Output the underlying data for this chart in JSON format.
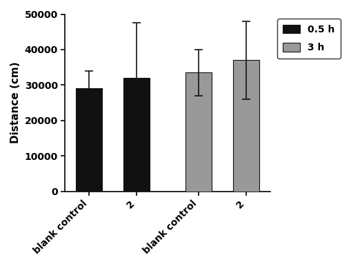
{
  "categories": [
    "blank control",
    "2",
    "blank control",
    "2"
  ],
  "values": [
    29000,
    32000,
    33500,
    37000
  ],
  "errors": [
    5000,
    15500,
    6500,
    11000
  ],
  "bar_colors": [
    "#111111",
    "#111111",
    "#999999",
    "#999999"
  ],
  "bar_edge_colors": [
    "#111111",
    "#111111",
    "#111111",
    "#111111"
  ],
  "ylabel": "Distance (cm)",
  "ylim": [
    0,
    50000
  ],
  "yticks": [
    0,
    10000,
    20000,
    30000,
    40000,
    50000
  ],
  "legend_labels": [
    "0.5 h",
    "3 h"
  ],
  "legend_colors": [
    "#111111",
    "#999999"
  ],
  "legend_edge_colors": [
    "#111111",
    "#111111"
  ],
  "bar_width": 0.55,
  "tick_fontsize": 10,
  "label_fontsize": 11,
  "legend_fontsize": 10
}
